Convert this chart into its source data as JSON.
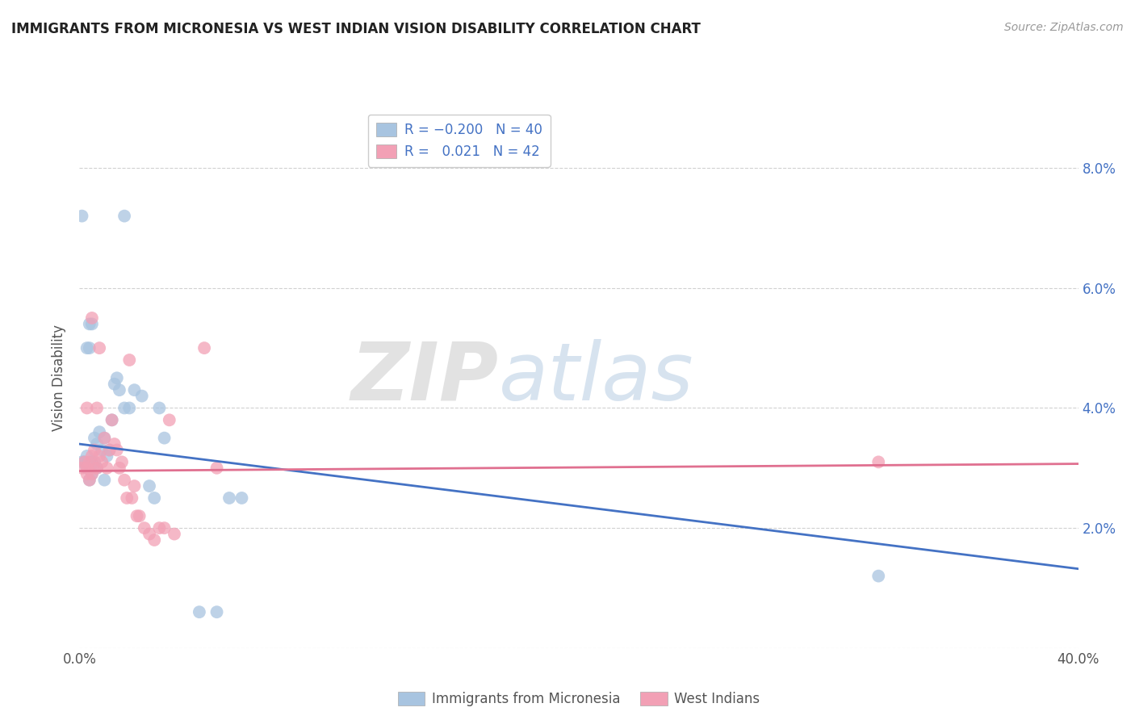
{
  "title": "IMMIGRANTS FROM MICRONESIA VS WEST INDIAN VISION DISABILITY CORRELATION CHART",
  "source": "Source: ZipAtlas.com",
  "ylabel": "Vision Disability",
  "xlim": [
    0.0,
    0.4
  ],
  "ylim": [
    0.0,
    0.09
  ],
  "blue_line_intercept": 0.034,
  "blue_line_slope": -0.052,
  "pink_line_intercept": 0.0295,
  "pink_line_slope": 0.003,
  "blue_color": "#a8c4e0",
  "pink_color": "#f2a0b5",
  "blue_line_color": "#4472c4",
  "pink_line_color": "#e07090",
  "blue_scatter": [
    [
      0.001,
      0.072
    ],
    [
      0.018,
      0.072
    ],
    [
      0.004,
      0.054
    ],
    [
      0.005,
      0.054
    ],
    [
      0.003,
      0.05
    ],
    [
      0.004,
      0.05
    ],
    [
      0.014,
      0.044
    ],
    [
      0.015,
      0.045
    ],
    [
      0.016,
      0.043
    ],
    [
      0.018,
      0.04
    ],
    [
      0.02,
      0.04
    ],
    [
      0.022,
      0.043
    ],
    [
      0.025,
      0.042
    ],
    [
      0.032,
      0.04
    ],
    [
      0.013,
      0.038
    ],
    [
      0.008,
      0.036
    ],
    [
      0.006,
      0.035
    ],
    [
      0.01,
      0.035
    ],
    [
      0.007,
      0.034
    ],
    [
      0.003,
      0.032
    ],
    [
      0.009,
      0.033
    ],
    [
      0.012,
      0.033
    ],
    [
      0.001,
      0.031
    ],
    [
      0.002,
      0.031
    ],
    [
      0.005,
      0.031
    ],
    [
      0.006,
      0.031
    ],
    [
      0.011,
      0.032
    ],
    [
      0.003,
      0.03
    ],
    [
      0.007,
      0.03
    ],
    [
      0.01,
      0.028
    ],
    [
      0.005,
      0.029
    ],
    [
      0.034,
      0.035
    ],
    [
      0.004,
      0.028
    ],
    [
      0.028,
      0.027
    ],
    [
      0.06,
      0.025
    ],
    [
      0.065,
      0.025
    ],
    [
      0.03,
      0.025
    ],
    [
      0.048,
      0.006
    ],
    [
      0.055,
      0.006
    ],
    [
      0.32,
      0.012
    ]
  ],
  "pink_scatter": [
    [
      0.005,
      0.055
    ],
    [
      0.008,
      0.05
    ],
    [
      0.003,
      0.04
    ],
    [
      0.007,
      0.04
    ],
    [
      0.02,
      0.048
    ],
    [
      0.05,
      0.05
    ],
    [
      0.036,
      0.038
    ],
    [
      0.013,
      0.038
    ],
    [
      0.01,
      0.035
    ],
    [
      0.012,
      0.033
    ],
    [
      0.014,
      0.034
    ],
    [
      0.015,
      0.033
    ],
    [
      0.001,
      0.03
    ],
    [
      0.002,
      0.031
    ],
    [
      0.003,
      0.03
    ],
    [
      0.004,
      0.031
    ],
    [
      0.005,
      0.032
    ],
    [
      0.006,
      0.033
    ],
    [
      0.007,
      0.03
    ],
    [
      0.008,
      0.032
    ],
    [
      0.009,
      0.031
    ],
    [
      0.011,
      0.03
    ],
    [
      0.016,
      0.03
    ],
    [
      0.017,
      0.031
    ],
    [
      0.055,
      0.03
    ],
    [
      0.003,
      0.029
    ],
    [
      0.005,
      0.029
    ],
    [
      0.006,
      0.03
    ],
    [
      0.018,
      0.028
    ],
    [
      0.004,
      0.028
    ],
    [
      0.021,
      0.025
    ],
    [
      0.022,
      0.027
    ],
    [
      0.019,
      0.025
    ],
    [
      0.023,
      0.022
    ],
    [
      0.024,
      0.022
    ],
    [
      0.026,
      0.02
    ],
    [
      0.028,
      0.019
    ],
    [
      0.03,
      0.018
    ],
    [
      0.032,
      0.02
    ],
    [
      0.034,
      0.02
    ],
    [
      0.038,
      0.019
    ],
    [
      0.32,
      0.031
    ]
  ],
  "watermark_zip": "ZIP",
  "watermark_atlas": "atlas",
  "background_color": "#ffffff",
  "grid_color": "#cccccc"
}
